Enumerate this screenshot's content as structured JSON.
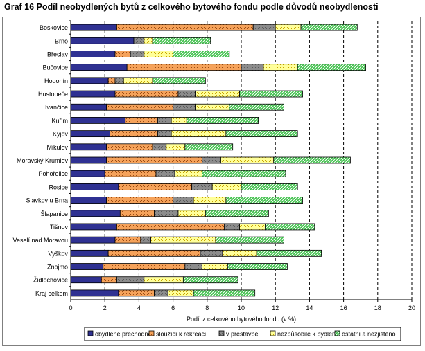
{
  "title": "Graf 16 Podíl neobydlených bytů z celkového bytového fondu podle důvodů neobydlenosti",
  "chart_data": {
    "type": "bar",
    "orientation": "horizontal",
    "stacked": true,
    "title": "Graf 16 Podíl neobydlených bytů z celkového bytového fondu podle důvodů neobydlenosti",
    "xlabel": "Podíl z celkového bytového fondu (v %)",
    "ylabel": "",
    "xlim": [
      0,
      20
    ],
    "xticks": [
      0,
      2,
      4,
      6,
      8,
      10,
      12,
      14,
      16,
      18,
      20
    ],
    "grid": "vertical dashed",
    "legend": "bottom",
    "colors": [
      "#2f3192",
      "#f4a460",
      "#8c8c8c",
      "#ffff99",
      "#3ec04a"
    ],
    "categories": [
      "Boskovice",
      "Brno",
      "Břeclav",
      "Bučovice",
      "Hodonín",
      "Hustopeče",
      "Ivančice",
      "Kuřim",
      "Kyjov",
      "Mikulov",
      "Moravský Krumlov",
      "Pohořelice",
      "Rosice",
      "Slavkov u Brna",
      "Šlapanice",
      "Tišnov",
      "Veselí nad Moravou",
      "Vyškov",
      "Znojmo",
      "Židlochovice",
      "Kraj celkem"
    ],
    "series": [
      {
        "name": "obydlené přechodně",
        "values": [
          2.7,
          3.7,
          2.6,
          3.3,
          2.2,
          2.6,
          2.1,
          3.2,
          2.3,
          2.1,
          2.1,
          2.0,
          2.8,
          2.1,
          2.9,
          2.7,
          2.6,
          2.2,
          1.9,
          1.8,
          2.8
        ]
      },
      {
        "name": "sloužící k rekreaci",
        "values": [
          8.0,
          0.0,
          0.9,
          6.7,
          0.4,
          3.7,
          3.9,
          1.9,
          2.8,
          2.7,
          5.6,
          3.0,
          4.3,
          3.9,
          2.0,
          6.3,
          1.5,
          5.4,
          4.8,
          0.9,
          2.1
        ]
      },
      {
        "name": "v přestavbě",
        "values": [
          1.3,
          0.6,
          0.8,
          1.3,
          0.5,
          1.0,
          1.3,
          0.8,
          0.8,
          0.8,
          1.1,
          1.1,
          1.2,
          1.2,
          1.4,
          0.9,
          0.6,
          1.3,
          1.0,
          1.6,
          0.8
        ]
      },
      {
        "name": "nezpůsobilé k bydlení",
        "values": [
          1.5,
          0.5,
          1.7,
          2.0,
          1.7,
          2.6,
          2.0,
          0.9,
          3.2,
          1.1,
          3.1,
          1.6,
          1.7,
          1.9,
          1.6,
          1.5,
          3.8,
          2.0,
          1.5,
          2.3,
          1.5
        ]
      },
      {
        "name": "ostatní a nezjištěno",
        "values": [
          3.3,
          3.4,
          3.3,
          4.0,
          3.1,
          3.7,
          3.2,
          4.2,
          4.2,
          2.8,
          4.5,
          4.9,
          3.3,
          4.5,
          3.7,
          2.9,
          4.0,
          3.8,
          3.5,
          3.2,
          3.6
        ]
      }
    ]
  }
}
